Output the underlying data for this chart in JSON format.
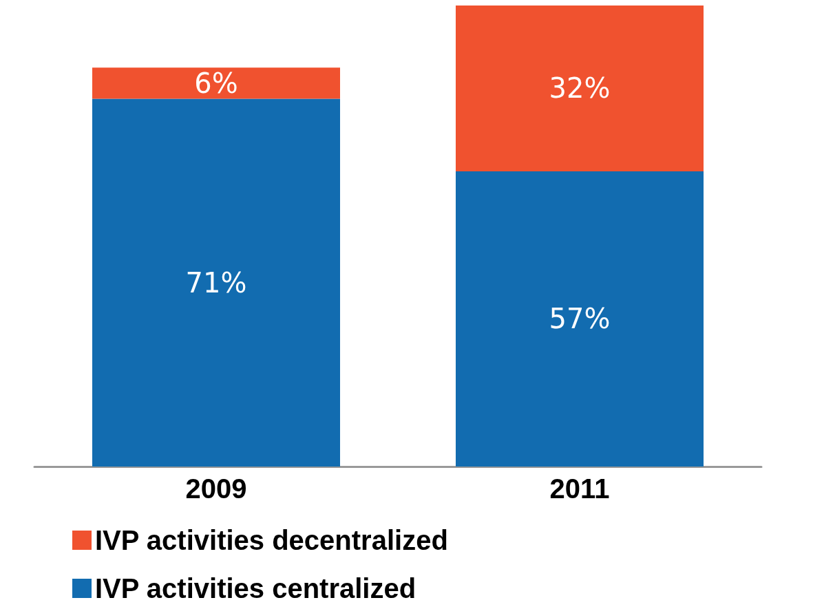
{
  "chart_data": {
    "type": "bar",
    "stacked": true,
    "categories": [
      "2009",
      "2011"
    ],
    "series": [
      {
        "name": "IVP activities centralized",
        "color": "#126cb0",
        "values": [
          71,
          57
        ],
        "value_labels": [
          "71%",
          "57%"
        ]
      },
      {
        "name": "IVP activities decentralized",
        "color": "#f0522f",
        "values": [
          6,
          32
        ],
        "value_labels": [
          "6%",
          "32%"
        ]
      }
    ],
    "legend": "bottom left",
    "grid": false
  }
}
